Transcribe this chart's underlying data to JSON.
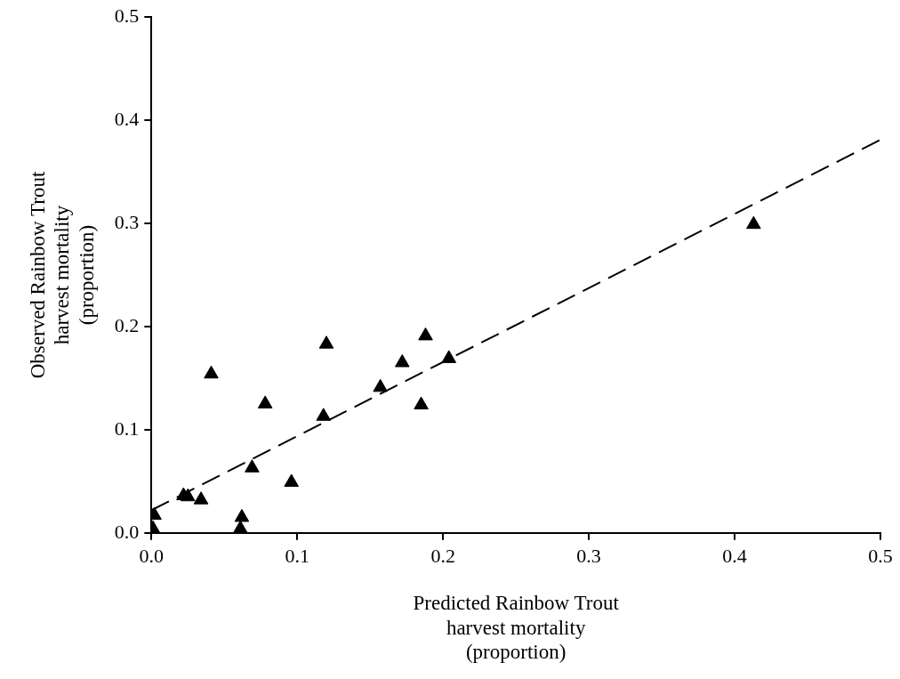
{
  "chart_data": {
    "type": "scatter",
    "xlabel": "Predicted Rainbow Trout\nharvest mortality\n(proportion)",
    "ylabel": "Observed Rainbow Trout\nharvest mortality\n(proportion)",
    "xlim": [
      0,
      0.5
    ],
    "ylim": [
      0,
      0.5
    ],
    "xticks": [
      {
        "value": 0,
        "label": "0.0"
      },
      0.1,
      0.2,
      0.3,
      0.4,
      0.5
    ],
    "yticks": [
      {
        "value": 0,
        "label": "0.0"
      },
      0.1,
      0.2,
      0.3,
      0.4,
      0.5
    ],
    "grid": false,
    "legend": false,
    "marker": "triangle",
    "series": [
      {
        "color": "#000000",
        "x": [
          0.001,
          0.002,
          0.022,
          0.025,
          0.034,
          0.041,
          0.062,
          0.061,
          0.069,
          0.078,
          0.096,
          0.118,
          0.12,
          0.157,
          0.172,
          0.185,
          0.188,
          0.204,
          0.413
        ],
        "values": [
          0.004,
          0.017,
          0.036,
          0.035,
          0.032,
          0.154,
          0.015,
          0.004,
          0.063,
          0.125,
          0.049,
          0.113,
          0.183,
          0.141,
          0.165,
          0.124,
          0.191,
          0.169,
          0.299
        ]
      },
      {
        "type": "line",
        "color": "#000000",
        "line_style": "dashed",
        "marker": "none",
        "x": [
          0,
          0.5
        ],
        "values": [
          0.022,
          0.381
        ]
      }
    ]
  }
}
